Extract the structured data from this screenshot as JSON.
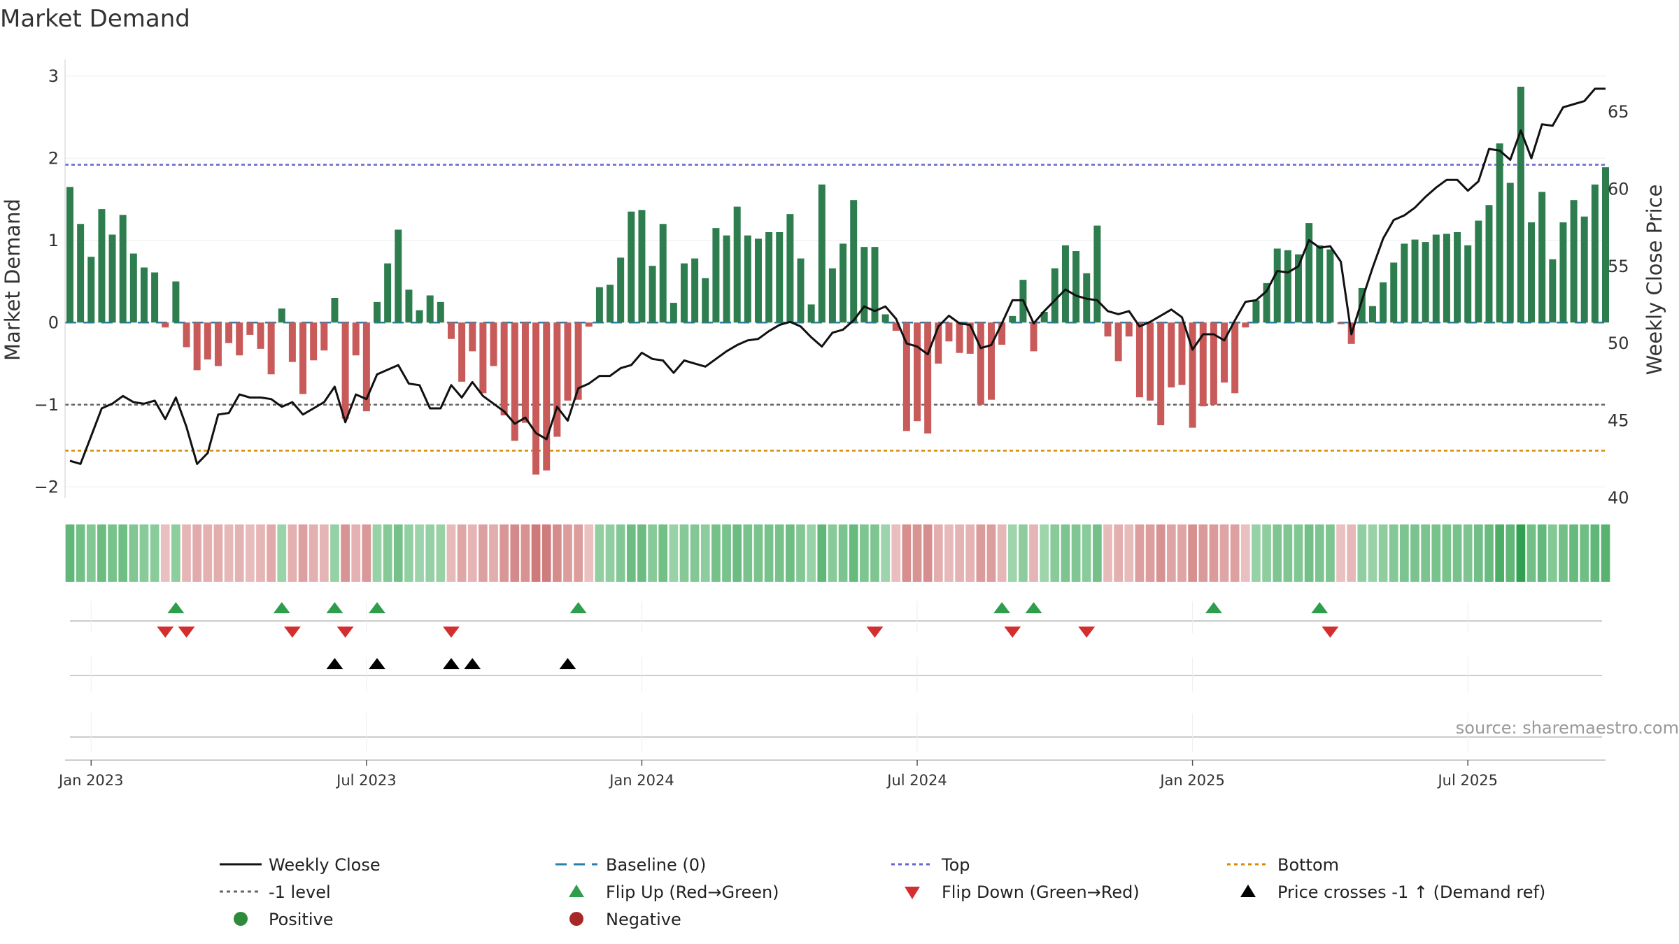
{
  "chart_data": {
    "type": "bar+line",
    "title": "Market Demand",
    "ylabel_left": "Market Demand",
    "ylabel_right": "Weekly Close Price",
    "ylim_left": [
      -2.1,
      3.1
    ],
    "ylim_right": [
      40,
      68.4
    ],
    "yticks_left": [
      3,
      2,
      1,
      0,
      -1,
      -2
    ],
    "ytick_labels_left": [
      "3",
      "2",
      "1",
      "0",
      "−1",
      "−2"
    ],
    "yticks_right": [
      65,
      60,
      55,
      50,
      45,
      40
    ],
    "ytick_labels_right": [
      "65",
      "60",
      "55",
      "50",
      "45",
      "40"
    ],
    "reference_lines": {
      "top": 1.92,
      "minus_one": -1.0,
      "bottom": -1.56,
      "baseline": 0
    },
    "x_start": "2022-12-19",
    "x_end": "2025-09-15",
    "x_ticks": [
      {
        "label": "Jan 2023",
        "week": 2
      },
      {
        "label": "Jul 2023",
        "week": 28
      },
      {
        "label": "Jan 2024",
        "week": 54
      },
      {
        "label": "Jul 2024",
        "week": 80
      },
      {
        "label": "Jan 2025",
        "week": 106
      },
      {
        "label": "Jul 2025",
        "week": 132
      }
    ],
    "demand": [
      1.65,
      1.2,
      0.8,
      1.38,
      1.07,
      1.31,
      0.84,
      0.67,
      0.61,
      -0.06,
      0.5,
      -0.3,
      -0.58,
      -0.45,
      -0.53,
      -0.25,
      -0.4,
      -0.15,
      -0.32,
      -0.63,
      0.17,
      -0.48,
      -0.87,
      -0.46,
      -0.34,
      0.3,
      -1.17,
      -0.4,
      -1.08,
      0.25,
      0.72,
      1.13,
      0.4,
      0.15,
      0.33,
      0.25,
      -0.2,
      -0.72,
      -0.35,
      -0.86,
      -0.53,
      -1.13,
      -1.44,
      -1.22,
      -1.85,
      -1.8,
      -1.39,
      -0.95,
      -0.94,
      -0.05,
      0.43,
      0.46,
      0.79,
      1.35,
      1.37,
      0.69,
      1.2,
      0.24,
      0.72,
      0.78,
      0.54,
      1.15,
      1.06,
      1.41,
      1.06,
      1.02,
      1.1,
      1.1,
      1.32,
      0.78,
      0.22,
      1.68,
      0.66,
      0.96,
      1.49,
      0.92,
      0.92,
      0.1,
      -0.1,
      -1.32,
      -1.2,
      -1.35,
      -0.5,
      -0.23,
      -0.37,
      -0.38,
      -1.0,
      -0.94,
      -0.27,
      0.08,
      0.52,
      -0.35,
      0.13,
      0.66,
      0.94,
      0.87,
      0.6,
      1.18,
      -0.17,
      -0.47,
      -0.17,
      -0.91,
      -0.95,
      -1.25,
      -0.79,
      -0.76,
      -1.28,
      -1.02,
      -1.0,
      -0.73,
      -0.86,
      -0.06,
      0.27,
      0.48,
      0.9,
      0.88,
      0.83,
      1.21,
      0.94,
      0.89,
      -0.02,
      -0.26,
      0.42,
      0.2,
      0.49,
      0.73,
      0.96,
      1.01,
      0.98,
      1.07,
      1.08,
      1.1,
      0.94,
      1.24,
      1.43,
      2.18,
      1.7,
      2.87,
      1.22,
      1.59,
      0.77,
      1.22,
      1.49,
      1.29,
      1.68,
      1.89
    ],
    "close": [
      42.4,
      42.2,
      44.0,
      45.8,
      46.1,
      46.6,
      46.2,
      46.1,
      46.3,
      45.1,
      46.5,
      44.6,
      42.2,
      42.9,
      45.4,
      45.5,
      46.7,
      46.5,
      46.5,
      46.4,
      45.9,
      46.2,
      45.4,
      45.8,
      46.2,
      47.2,
      44.9,
      46.7,
      46.4,
      48.0,
      48.3,
      48.6,
      47.4,
      47.3,
      45.8,
      45.8,
      47.3,
      46.5,
      47.5,
      46.6,
      46.1,
      45.6,
      44.8,
      45.2,
      44.2,
      43.8,
      45.9,
      45.0,
      47.1,
      47.4,
      47.9,
      47.9,
      48.4,
      48.6,
      49.4,
      49.0,
      48.9,
      48.1,
      48.9,
      48.7,
      48.5,
      49.0,
      49.5,
      49.9,
      50.2,
      50.3,
      50.8,
      51.2,
      51.4,
      51.1,
      50.4,
      49.8,
      50.7,
      50.9,
      51.5,
      52.4,
      52.1,
      52.4,
      51.6,
      50.0,
      49.8,
      49.3,
      51.1,
      51.8,
      51.3,
      51.2,
      49.7,
      49.9,
      51.3,
      52.8,
      52.8,
      51.3,
      52.1,
      52.8,
      53.5,
      53.1,
      52.9,
      52.8,
      52.1,
      51.9,
      52.1,
      51.1,
      51.4,
      51.8,
      52.2,
      51.7,
      49.6,
      50.6,
      50.6,
      50.2,
      51.5,
      52.7,
      52.8,
      53.4,
      54.7,
      54.6,
      55.0,
      56.7,
      56.2,
      56.3,
      55.3,
      50.6,
      52.8,
      54.9,
      56.8,
      58.0,
      58.3,
      58.8,
      59.5,
      60.1,
      60.6,
      60.6,
      59.9,
      60.5,
      62.6,
      62.5,
      61.9,
      63.8,
      62.0,
      64.2,
      64.1,
      65.3,
      65.5,
      65.7,
      66.5,
      66.5
    ],
    "flip_up_weeks": [
      10,
      20,
      25,
      29,
      48,
      88,
      91,
      108,
      118
    ],
    "flip_down_weeks": [
      9,
      11,
      21,
      26,
      36,
      76,
      89,
      96,
      119
    ],
    "price_cross_weeks": [
      25,
      29,
      36,
      38,
      47
    ],
    "source": "source: sharemaestro.com",
    "legend": {
      "weekly_close": "Weekly Close",
      "baseline": "Baseline (0)",
      "top": "Top",
      "bottom": "Bottom",
      "minus_one": "-1 level",
      "flip_up": "Flip Up (Red→Green)",
      "flip_down": "Flip Down (Green→Red)",
      "price_cross": "Price crosses -1 ↑ (Demand ref)",
      "positive": "Positive",
      "negative": "Negative"
    },
    "colors": {
      "positive": "#2e7d4f",
      "negative": "#c85a5a",
      "close": "#111111",
      "baseline": "#2a7fa8",
      "top": "#6666cc",
      "bottom": "#d68a00",
      "minus_one": "#666666",
      "flip_up": "#2e9e4d",
      "flip_down": "#d32f2f",
      "positive_dot": "#2e8b3a",
      "negative_dot": "#a82828",
      "cross": "#000000"
    }
  }
}
